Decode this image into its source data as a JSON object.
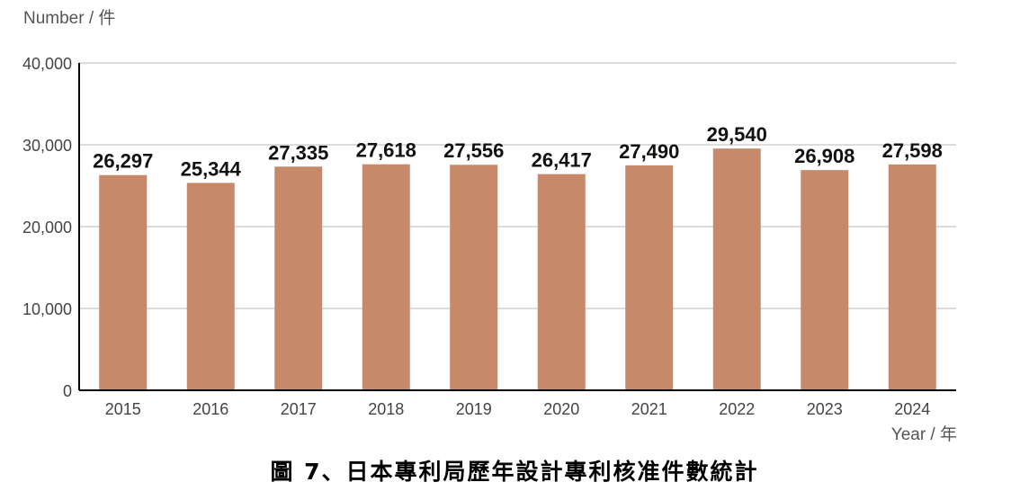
{
  "chart_data": {
    "type": "bar",
    "ylabel": "Number / 件",
    "xlabel": "Year / 年",
    "categories": [
      "2015",
      "2016",
      "2017",
      "2018",
      "2019",
      "2020",
      "2021",
      "2022",
      "2023",
      "2024"
    ],
    "values": [
      26297,
      25344,
      27335,
      27618,
      27556,
      26417,
      27490,
      29540,
      26908,
      27598
    ],
    "data_labels": [
      "26,297",
      "25,344",
      "27,335",
      "27,618",
      "27,556",
      "26,417",
      "27,490",
      "29,540",
      "26,908",
      "27,598"
    ],
    "ylim": [
      0,
      40000
    ],
    "yticks": [
      0,
      10000,
      20000,
      30000,
      40000
    ],
    "ytick_labels": [
      "0",
      "10,000",
      "20,000",
      "30,000",
      "40,000"
    ],
    "grid": true,
    "legend": "none"
  },
  "caption": "圖 7、日本專利局歷年設計專利核准件數統計",
  "colors": {
    "bar": "#c8896b",
    "grid": "#c8c8c8",
    "axis": "#000000",
    "tick_text": "#444444",
    "label_text": "#111111",
    "axis_title_text": "#555555"
  }
}
